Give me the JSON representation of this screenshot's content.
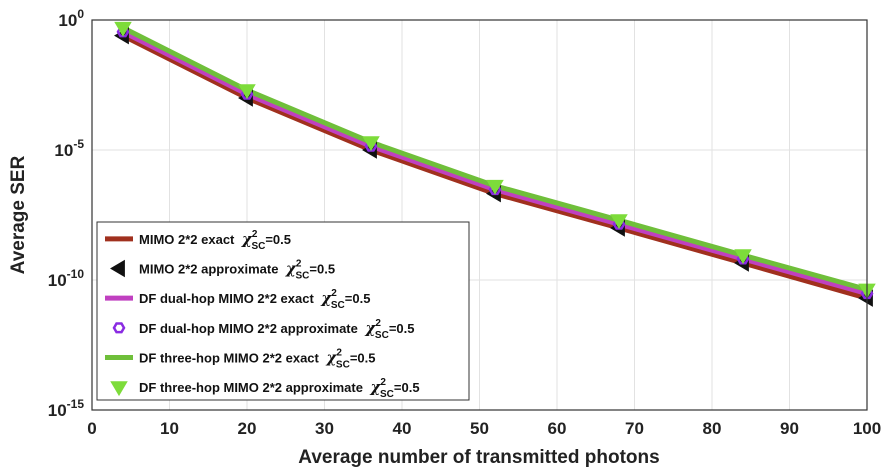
{
  "chart_data": {
    "type": "line",
    "xlabel": "Average number of transmitted photons",
    "ylabel": "Average SER",
    "xlim": [
      0,
      100
    ],
    "ylim_exponents": [
      -15,
      0
    ],
    "yscale": "log",
    "grid": true,
    "legend_position": "bottom-left",
    "x_ticks": [
      "0",
      "10",
      "20",
      "30",
      "40",
      "50",
      "60",
      "70",
      "80",
      "90",
      "100"
    ],
    "y_ticks": [
      {
        "base": "10",
        "exp": "-15",
        "value": 1e-15
      },
      {
        "base": "10",
        "exp": "-10",
        "value": 1e-10
      },
      {
        "base": "10",
        "exp": "-5",
        "value": 1e-05
      },
      {
        "base": "10",
        "exp": "0",
        "value": 1
      }
    ],
    "x": [
      4,
      20,
      36,
      52,
      68,
      84,
      100
    ],
    "series": [
      {
        "name": "MIMO 2*2 exact",
        "chi_value": "=0.5",
        "style": "line",
        "color": "#a0301e",
        "values": [
          0.25,
          0.001,
          1e-05,
          2.1e-07,
          1e-08,
          4.5e-10,
          2e-11
        ]
      },
      {
        "name": "MIMO 2*2 approximate",
        "chi_value": "=0.5",
        "style": "marker",
        "marker": "left-triangle",
        "color": "#111111",
        "values": [
          0.25,
          0.001,
          1e-05,
          2.1e-07,
          1e-08,
          4.5e-10,
          2e-11
        ]
      },
      {
        "name": "DF dual-hop MIMO 2*2 exact",
        "chi_value": "=0.5",
        "style": "line",
        "color": "#c040c0",
        "values": [
          0.35,
          0.0014,
          1.4e-05,
          3e-07,
          1.4e-08,
          6.5e-10,
          3e-11
        ]
      },
      {
        "name": "DF dual-hop MIMO 2*2 approximate",
        "chi_value": "=0.5",
        "style": "marker",
        "marker": "hexagon",
        "color": "#8a2be2",
        "values": [
          0.35,
          0.0014,
          1.4e-05,
          3e-07,
          1.4e-08,
          6.5e-10,
          3e-11
        ]
      },
      {
        "name": "DF three-hop MIMO 2*2 exact",
        "chi_value": "=0.5",
        "style": "line",
        "color": "#6fbf3a",
        "values": [
          0.5,
          0.002,
          2e-05,
          4.2e-07,
          2e-08,
          9e-10,
          4.3e-11
        ]
      },
      {
        "name": "DF three-hop MIMO 2*2 approximate",
        "chi_value": "=0.5",
        "style": "marker",
        "marker": "down-triangle",
        "color": "#7ddc3a",
        "values": [
          0.5,
          0.002,
          2e-05,
          4.2e-07,
          2e-08,
          9e-10,
          4.3e-11
        ]
      }
    ]
  }
}
